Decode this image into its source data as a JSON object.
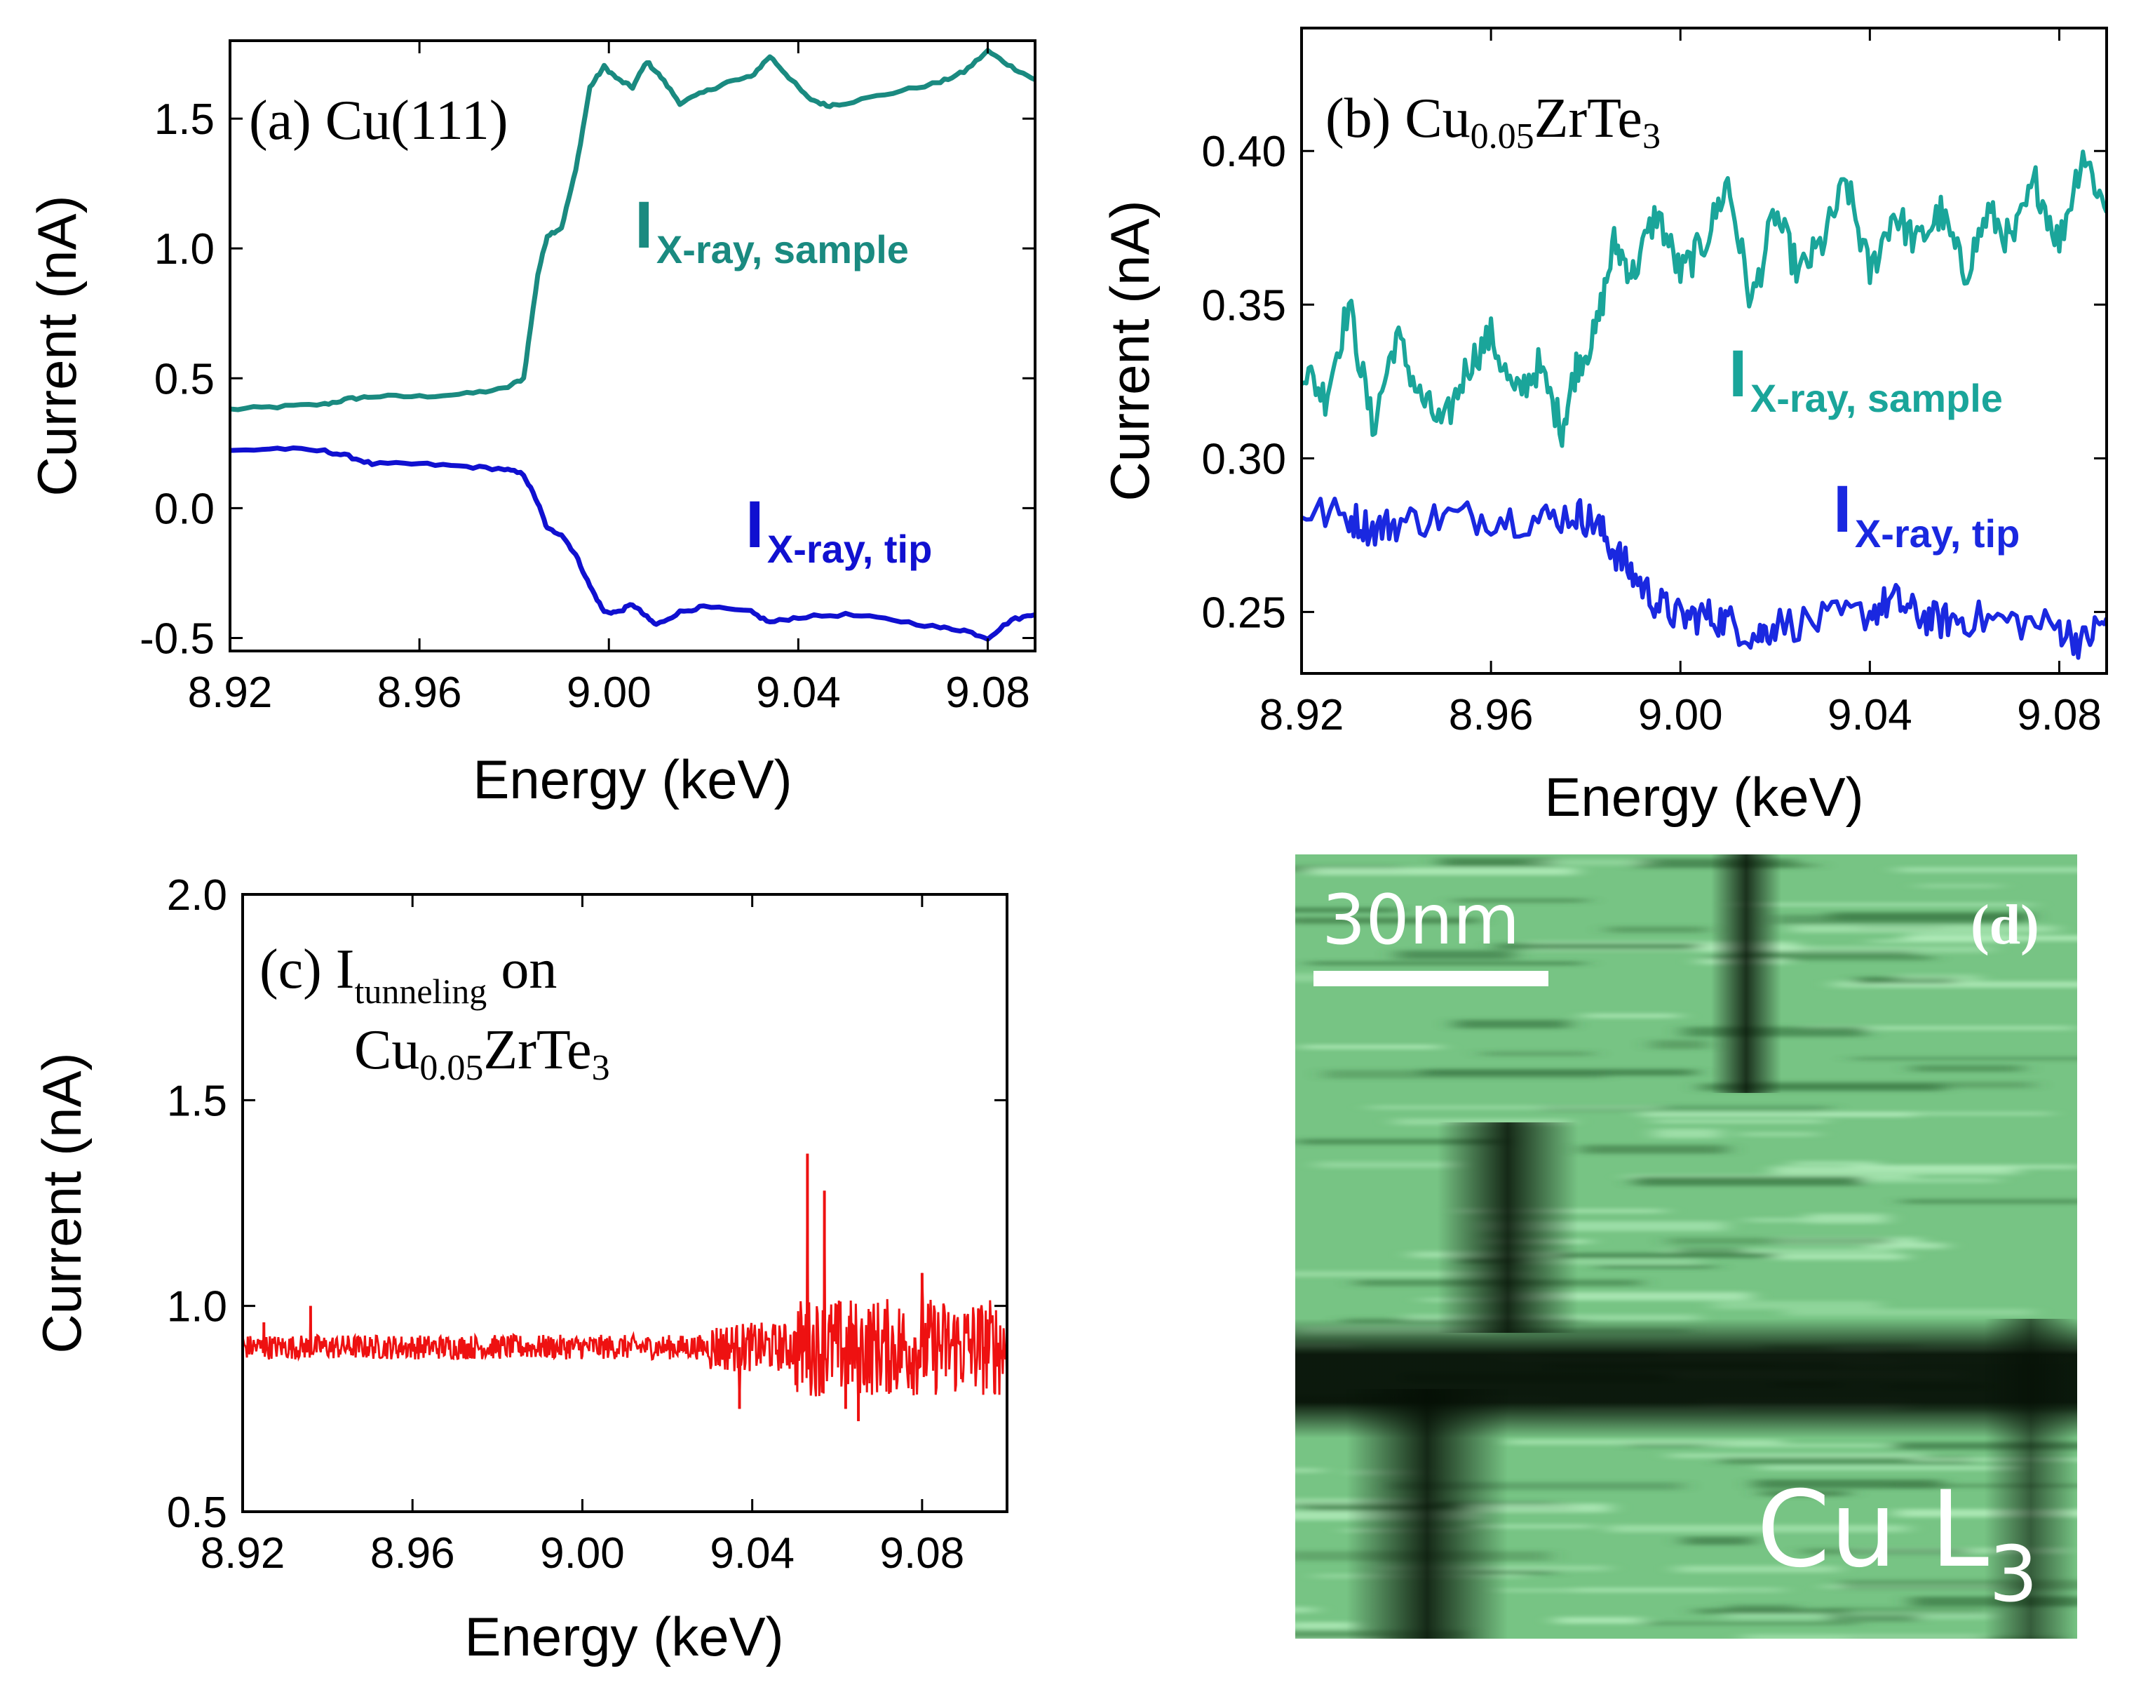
{
  "chart_data": [
    {
      "id": "a",
      "type": "line",
      "panel_label": "(a) Cu(111)",
      "xlabel": "Energy (keV)",
      "ylabel": "Current (nA)",
      "xlim": [
        8.92,
        9.09
      ],
      "ylim": [
        -0.55,
        1.8
      ],
      "xticks": [
        8.92,
        8.96,
        9.0,
        9.04,
        9.08
      ],
      "xtick_labels": [
        "8.92",
        "8.96",
        "9.00",
        "9.04",
        "9.08"
      ],
      "yticks": [
        -0.5,
        0.0,
        0.5,
        1.0,
        1.5
      ],
      "ytick_labels": [
        "-0.5",
        "0.0",
        "0.5",
        "1.0",
        "1.5"
      ],
      "series": [
        {
          "name": "I X-ray, sample",
          "label_main": "I",
          "label_sub": "X-ray, sample",
          "color": "#1a8a80",
          "x": [
            8.92,
            8.93,
            8.94,
            8.945,
            8.95,
            8.96,
            8.97,
            8.978,
            8.982,
            8.985,
            8.987,
            8.99,
            8.993,
            8.996,
            8.999,
            9.002,
            9.005,
            9.008,
            9.011,
            9.015,
            9.02,
            9.025,
            9.03,
            9.034,
            9.038,
            9.042,
            9.046,
            9.05,
            9.06,
            9.07,
            9.075,
            9.08,
            9.085,
            9.09
          ],
          "y": [
            0.38,
            0.39,
            0.4,
            0.42,
            0.43,
            0.43,
            0.44,
            0.46,
            0.5,
            0.9,
            1.05,
            1.08,
            1.3,
            1.62,
            1.7,
            1.65,
            1.62,
            1.72,
            1.66,
            1.56,
            1.6,
            1.64,
            1.66,
            1.74,
            1.66,
            1.58,
            1.55,
            1.56,
            1.6,
            1.64,
            1.68,
            1.76,
            1.7,
            1.65
          ]
        },
        {
          "name": "I X-ray, tip",
          "label_main": "I",
          "label_sub": "X-ray, tip",
          "color": "#1010d0",
          "x": [
            8.92,
            8.93,
            8.94,
            8.945,
            8.95,
            8.96,
            8.97,
            8.978,
            8.982,
            8.985,
            8.987,
            8.99,
            8.993,
            8.996,
            8.999,
            9.002,
            9.005,
            9.008,
            9.01,
            9.015,
            9.02,
            9.03,
            9.034,
            9.04,
            9.05,
            9.06,
            9.07,
            9.075,
            9.08,
            9.085,
            9.09
          ],
          "y": [
            0.22,
            0.23,
            0.22,
            0.2,
            0.17,
            0.17,
            0.16,
            0.15,
            0.13,
            0.02,
            -0.08,
            -0.1,
            -0.18,
            -0.3,
            -0.4,
            -0.4,
            -0.37,
            -0.42,
            -0.45,
            -0.4,
            -0.38,
            -0.4,
            -0.44,
            -0.42,
            -0.41,
            -0.43,
            -0.46,
            -0.47,
            -0.5,
            -0.43,
            -0.41
          ]
        }
      ]
    },
    {
      "id": "b",
      "type": "line",
      "panel_label_main": "(b) Cu",
      "panel_label_sub": "0.05",
      "panel_label_main2": "ZrTe",
      "panel_label_sub2": "3",
      "xlabel": "Energy (keV)",
      "ylabel": "Current (nA)",
      "xlim": [
        8.92,
        9.09
      ],
      "ylim": [
        0.23,
        0.44
      ],
      "xticks": [
        8.92,
        8.96,
        9.0,
        9.04,
        9.08
      ],
      "xtick_labels": [
        "8.92",
        "8.96",
        "9.00",
        "9.04",
        "9.08"
      ],
      "yticks": [
        0.25,
        0.3,
        0.35,
        0.4
      ],
      "ytick_labels": [
        "0.25",
        "0.30",
        "0.35",
        "0.40"
      ],
      "series": [
        {
          "name": "I X-ray, sample",
          "label_main": "I",
          "label_sub": "X-ray, sample",
          "color": "#1aa59a",
          "x": [
            8.92,
            8.925,
            8.93,
            8.935,
            8.94,
            8.945,
            8.95,
            8.955,
            8.96,
            8.965,
            8.97,
            8.975,
            8.978,
            8.982,
            8.986,
            8.99,
            8.995,
            9.0,
            9.005,
            9.01,
            9.015,
            9.02,
            9.025,
            9.03,
            9.035,
            9.04,
            9.045,
            9.05,
            9.055,
            9.06,
            9.065,
            9.07,
            9.075,
            9.08,
            9.085,
            9.09
          ],
          "y": [
            0.33,
            0.32,
            0.35,
            0.31,
            0.34,
            0.32,
            0.31,
            0.33,
            0.34,
            0.32,
            0.33,
            0.31,
            0.33,
            0.34,
            0.37,
            0.36,
            0.38,
            0.36,
            0.37,
            0.39,
            0.35,
            0.38,
            0.36,
            0.37,
            0.39,
            0.36,
            0.38,
            0.37,
            0.38,
            0.36,
            0.38,
            0.37,
            0.39,
            0.37,
            0.4,
            0.38
          ]
        },
        {
          "name": "I X-ray, tip",
          "label_main": "I",
          "label_sub": "X-ray, tip",
          "color": "#1a28e0",
          "x": [
            8.92,
            8.93,
            8.935,
            8.94,
            8.95,
            8.96,
            8.97,
            8.978,
            8.982,
            8.986,
            8.99,
            8.995,
            9.0,
            9.005,
            9.01,
            9.016,
            9.02,
            9.03,
            9.04,
            9.045,
            9.05,
            9.055,
            9.06,
            9.07,
            9.08,
            9.085,
            9.09
          ],
          "y": [
            0.283,
            0.281,
            0.277,
            0.279,
            0.281,
            0.281,
            0.28,
            0.282,
            0.279,
            0.27,
            0.262,
            0.253,
            0.248,
            0.249,
            0.247,
            0.242,
            0.246,
            0.247,
            0.25,
            0.254,
            0.249,
            0.247,
            0.248,
            0.247,
            0.245,
            0.24,
            0.248
          ]
        }
      ]
    },
    {
      "id": "c",
      "type": "line",
      "panel_label_main": "(c) I",
      "panel_label_sub": "tunneling",
      "panel_label_tail": "on",
      "panel_label_line2": "Cu",
      "panel_label_line2_sub": "0.05",
      "panel_label_line2_main2": "ZrTe",
      "panel_label_line2_sub2": "3",
      "xlabel": "Energy (keV)",
      "ylabel": "Current (nA)",
      "xlim": [
        8.92,
        9.1
      ],
      "ylim": [
        0.5,
        2.0
      ],
      "xticks": [
        8.92,
        8.96,
        9.0,
        9.04,
        9.08
      ],
      "xtick_labels": [
        "8.92",
        "8.96",
        "9.00",
        "9.04",
        "9.08"
      ],
      "yticks": [
        0.5,
        1.0,
        1.5,
        2.0
      ],
      "ytick_labels": [
        "0.5",
        "1.0",
        "1.5",
        "2.0"
      ],
      "series": [
        {
          "name": "I tunneling",
          "color": "#ee1111",
          "baseline": 0.9,
          "noise_regions": [
            {
              "from": 8.92,
              "to": 9.03,
              "amplitude": 0.03
            },
            {
              "from": 9.03,
              "to": 9.05,
              "amplitude": 0.06
            },
            {
              "from": 9.05,
              "to": 9.1,
              "amplitude": 0.12
            }
          ],
          "spikes": [
            {
              "x": 8.925,
              "y": 0.96
            },
            {
              "x": 8.936,
              "y": 1.0
            },
            {
              "x": 9.037,
              "y": 0.75
            },
            {
              "x": 9.053,
              "y": 1.37
            },
            {
              "x": 9.057,
              "y": 1.28
            },
            {
              "x": 9.062,
              "y": 0.75
            },
            {
              "x": 9.065,
              "y": 0.72
            },
            {
              "x": 9.08,
              "y": 1.08
            }
          ]
        }
      ]
    }
  ],
  "image_panel": {
    "label": "(d)",
    "scale_bar_label": "30nm",
    "element_label_main": "Cu L",
    "element_label_sub": "3"
  }
}
